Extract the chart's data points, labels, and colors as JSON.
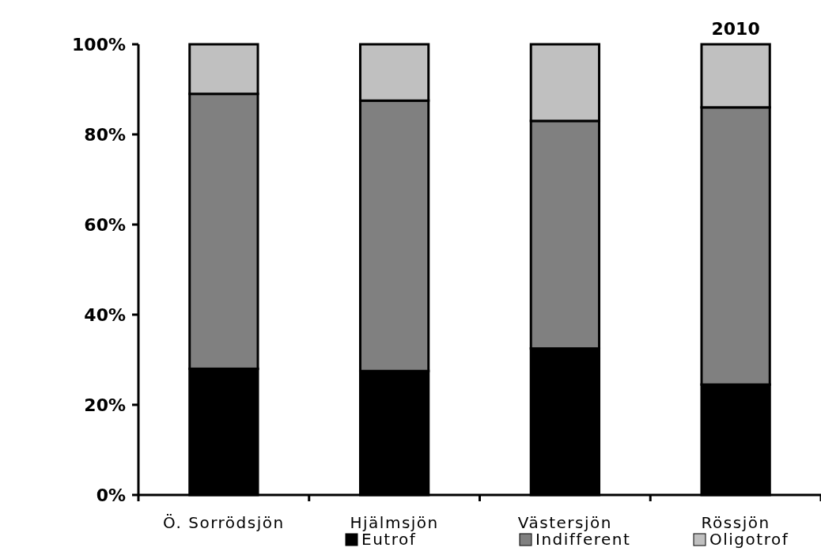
{
  "chart_data": {
    "type": "bar",
    "title": "2010",
    "stacked": true,
    "categories": [
      "Ö. Sorrödsjön",
      "Hjälmsjön",
      "Västersjön",
      "Rössjön"
    ],
    "series": [
      {
        "name": "Eutrof",
        "color": "#000000",
        "values": [
          28,
          27.5,
          32.5,
          24.5
        ]
      },
      {
        "name": "Indifferent",
        "color": "#808080",
        "values": [
          61,
          60,
          50.5,
          61.5
        ]
      },
      {
        "name": "Oligotrof",
        "color": "#c0c0c0",
        "values": [
          11,
          12.5,
          17,
          14
        ]
      }
    ],
    "ylim": [
      0,
      100
    ],
    "yticks": [
      {
        "value": 0,
        "label": "0%"
      },
      {
        "value": 20,
        "label": "20%"
      },
      {
        "value": 40,
        "label": "40%"
      },
      {
        "value": 60,
        "label": "60%"
      },
      {
        "value": 80,
        "label": "80%"
      },
      {
        "value": 100,
        "label": "100%"
      }
    ],
    "grid": false,
    "legend": "bottom"
  }
}
